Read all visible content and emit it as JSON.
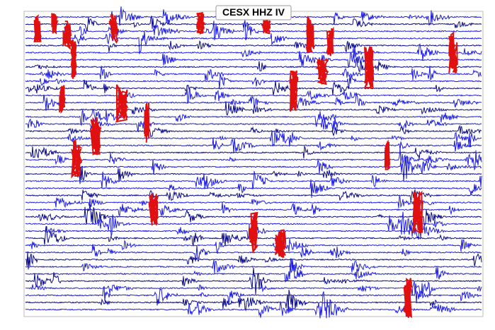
{
  "header": {
    "title": "CESX HHZ IV"
  }
}
